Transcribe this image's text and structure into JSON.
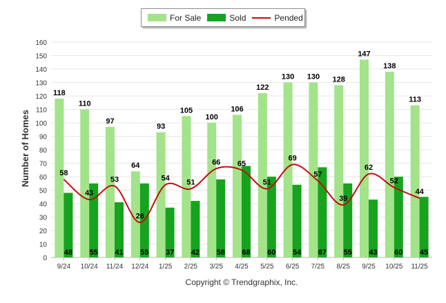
{
  "chart_data": {
    "type": "bar",
    "title": "",
    "xlabel": "",
    "ylabel": "Number of Homes",
    "ylim": [
      0,
      160
    ],
    "yticks": [
      0,
      10,
      20,
      30,
      40,
      50,
      60,
      70,
      80,
      90,
      100,
      110,
      120,
      130,
      140,
      150,
      160
    ],
    "grid": true,
    "legend_position": "top-center",
    "categories": [
      "9/24",
      "10/24",
      "11/24",
      "12/24",
      "1/25",
      "2/25",
      "3/25",
      "4/25",
      "5/25",
      "6/25",
      "7/25",
      "8/25",
      "9/25",
      "10/25",
      "11/25"
    ],
    "series": [
      {
        "name": "For Sale",
        "kind": "bar",
        "color": "#a3e38a",
        "values": [
          118,
          110,
          97,
          64,
          93,
          105,
          100,
          106,
          122,
          130,
          130,
          128,
          147,
          138,
          113
        ]
      },
      {
        "name": "Sold",
        "kind": "bar",
        "color": "#17a31f",
        "values": [
          48,
          55,
          41,
          55,
          37,
          42,
          58,
          68,
          60,
          54,
          67,
          55,
          43,
          60,
          45
        ]
      },
      {
        "name": "Pended",
        "kind": "line",
        "color": "#c20c0c",
        "values": [
          58,
          43,
          53,
          26,
          54,
          51,
          66,
          65,
          51,
          69,
          57,
          39,
          62,
          52,
          44
        ]
      }
    ]
  },
  "footer": {
    "copyright": "Copyright © Trendgraphix, Inc."
  }
}
